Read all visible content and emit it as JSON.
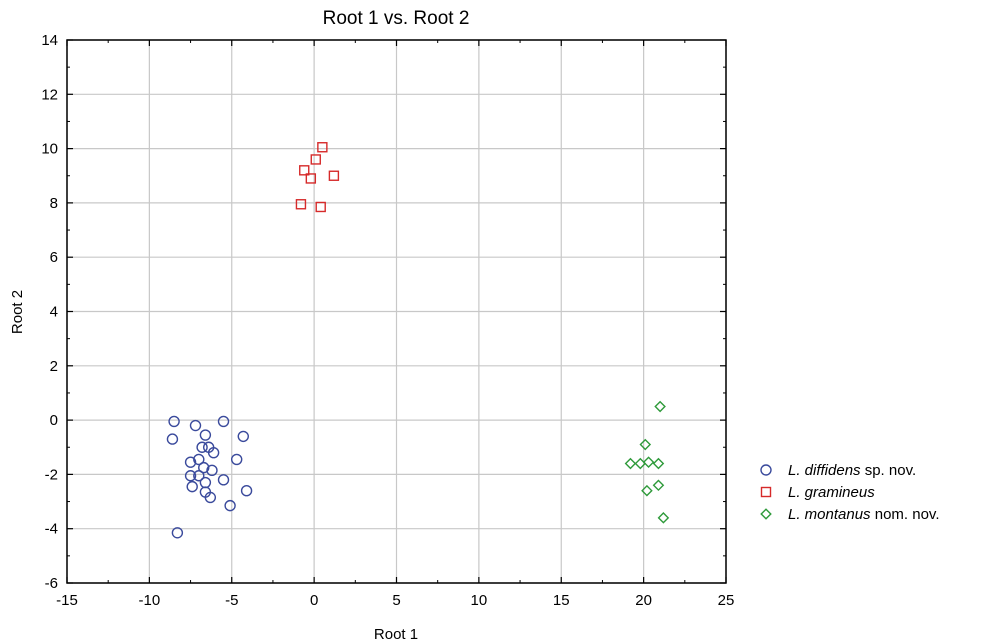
{
  "chart_data": {
    "type": "scatter",
    "title": "Root 1 vs. Root 2",
    "xlabel": "Root 1",
    "ylabel": "Root 2",
    "xlim": [
      -15,
      25
    ],
    "ylim": [
      -6,
      14
    ],
    "xticks": [
      -15,
      -10,
      -5,
      0,
      5,
      10,
      15,
      20,
      25
    ],
    "yticks": [
      -6,
      -4,
      -2,
      0,
      2,
      4,
      6,
      8,
      10,
      12,
      14
    ],
    "grid": true,
    "legend_position": "right",
    "series": [
      {
        "name_italic": "L. diffidens",
        "name_rest": " sp. nov.",
        "marker": "circle",
        "color": "#3a4a9c",
        "points": [
          [
            -8.5,
            -0.05
          ],
          [
            -8.6,
            -0.7
          ],
          [
            -7.2,
            -0.2
          ],
          [
            -5.5,
            -0.05
          ],
          [
            -4.3,
            -0.6
          ],
          [
            -6.6,
            -0.55
          ],
          [
            -6.4,
            -1.0
          ],
          [
            -6.8,
            -1.0
          ],
          [
            -6.1,
            -1.2
          ],
          [
            -7.0,
            -1.45
          ],
          [
            -7.5,
            -1.55
          ],
          [
            -6.7,
            -1.75
          ],
          [
            -6.2,
            -1.85
          ],
          [
            -4.7,
            -1.45
          ],
          [
            -7.5,
            -2.05
          ],
          [
            -7.0,
            -2.05
          ],
          [
            -6.6,
            -2.3
          ],
          [
            -5.5,
            -2.2
          ],
          [
            -7.4,
            -2.45
          ],
          [
            -6.6,
            -2.65
          ],
          [
            -6.3,
            -2.85
          ],
          [
            -4.1,
            -2.6
          ],
          [
            -5.1,
            -3.15
          ],
          [
            -8.3,
            -4.15
          ]
        ]
      },
      {
        "name_italic": "L. gramineus",
        "name_rest": "",
        "marker": "square",
        "color": "#d62a2a",
        "points": [
          [
            0.5,
            10.05
          ],
          [
            0.1,
            9.6
          ],
          [
            -0.6,
            9.2
          ],
          [
            -0.2,
            8.9
          ],
          [
            1.2,
            9.0
          ],
          [
            -0.8,
            7.95
          ],
          [
            0.4,
            7.85
          ]
        ]
      },
      {
        "name_italic": "L. montanus",
        "name_rest": " nom. nov.",
        "marker": "diamond",
        "color": "#2e9a3a",
        "points": [
          [
            21.0,
            0.5
          ],
          [
            20.1,
            -0.9
          ],
          [
            19.2,
            -1.6
          ],
          [
            19.8,
            -1.6
          ],
          [
            20.3,
            -1.55
          ],
          [
            20.9,
            -1.6
          ],
          [
            20.2,
            -2.6
          ],
          [
            20.9,
            -2.4
          ],
          [
            21.2,
            -3.6
          ]
        ]
      }
    ]
  }
}
